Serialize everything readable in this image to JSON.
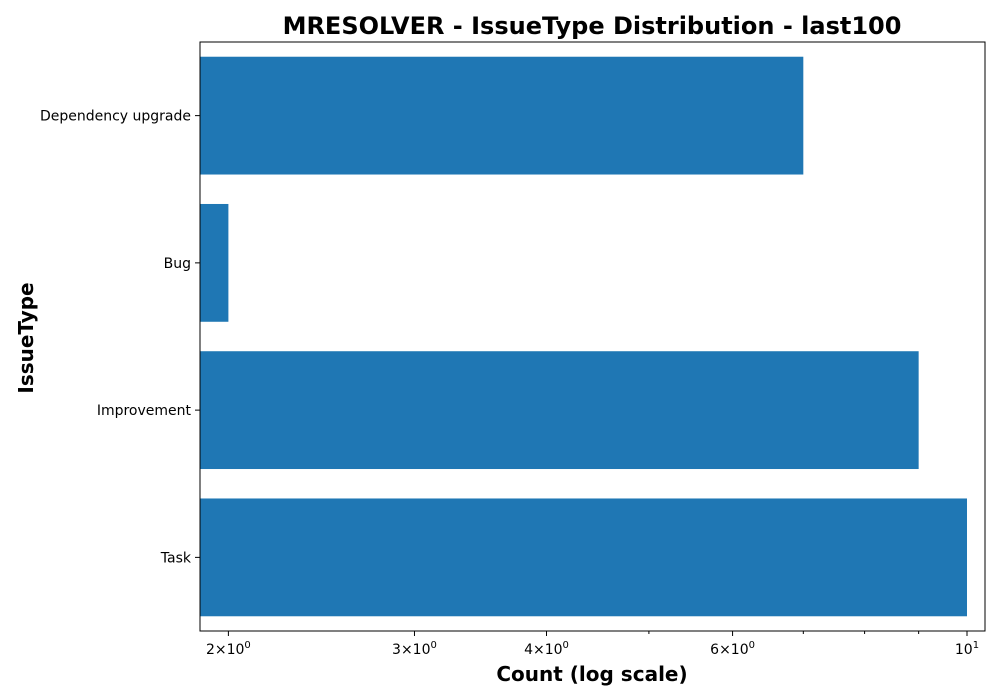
{
  "chart_data": {
    "type": "bar",
    "orientation": "horizontal",
    "title": "MRESOLVER - IssueType Distribution - last100",
    "xlabel": "Count (log scale)",
    "ylabel": "IssueType",
    "xscale": "log",
    "xlim": [
      1.88,
      10.4
    ],
    "categories": [
      "Task",
      "Improvement",
      "Bug",
      "Dependency upgrade"
    ],
    "values": [
      10,
      9,
      2,
      7
    ],
    "bar_color": "#1f77b4",
    "grid": false,
    "major_ticks": [
      {
        "value": 2,
        "base": "2×10",
        "exp": "0"
      },
      {
        "value": 3,
        "base": "3×10",
        "exp": "0"
      },
      {
        "value": 4,
        "base": "4×10",
        "exp": "0"
      },
      {
        "value": 6,
        "base": "6×10",
        "exp": "0"
      },
      {
        "value": 10,
        "base": "10",
        "exp": "1"
      }
    ],
    "minor_ticks": [
      5,
      7,
      8,
      9
    ]
  }
}
